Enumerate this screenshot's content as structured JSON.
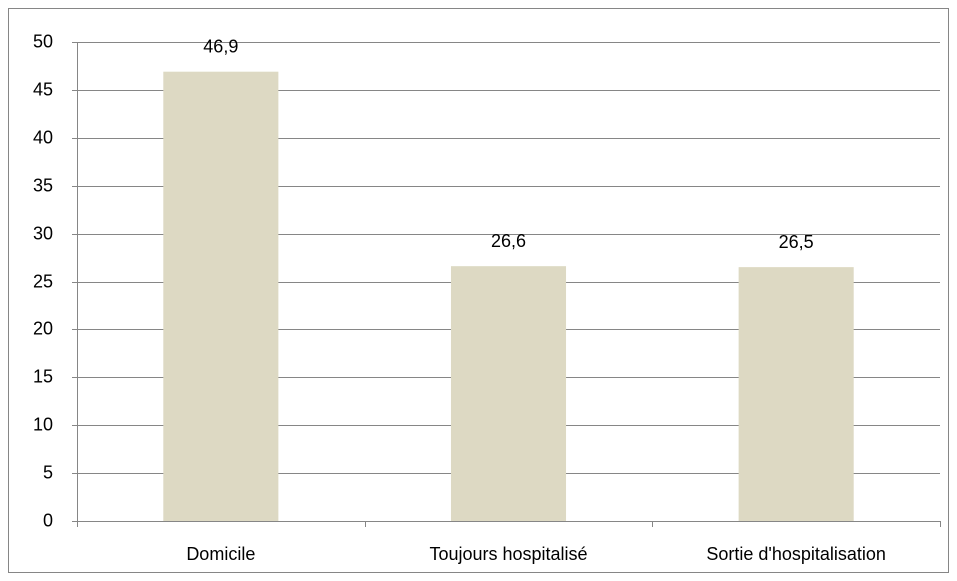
{
  "chart_data": {
    "type": "bar",
    "categories": [
      "Domicile",
      "Toujours hospitalisé",
      "Sortie d'hospitalisation"
    ],
    "values": [
      46.9,
      26.6,
      26.5
    ],
    "value_labels": [
      "46,9",
      "26,6",
      "26,5"
    ],
    "color": "#ddd9c3",
    "ylim": [
      0,
      50
    ],
    "yticks": [
      0,
      5,
      10,
      15,
      20,
      25,
      30,
      35,
      40,
      45,
      50
    ],
    "grid": true
  }
}
